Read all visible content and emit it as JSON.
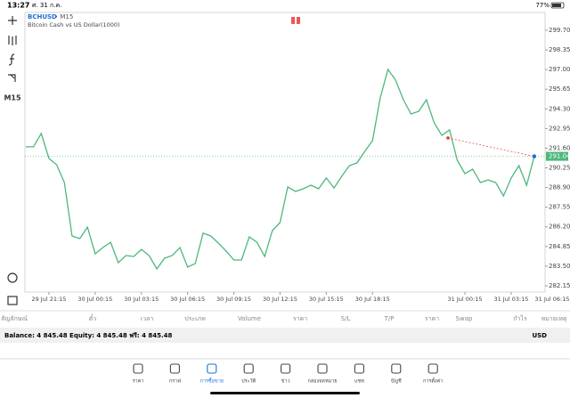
{
  "status_bar": {
    "time": "13:27",
    "date": "ศ. 31 ก.ค.",
    "battery": "77%"
  },
  "chart_header": {
    "symbol": "BCHUSD",
    "timeframe": "• M15",
    "description": "Bitcoin Cash vs US Dollar(1000)"
  },
  "toolbar": {
    "timeframe": "M15"
  },
  "chart_data": {
    "type": "line",
    "color": "#4cb87a",
    "categories": [
      null,
      null,
      null,
      "29 Jul 21:15",
      null,
      null,
      null,
      null,
      null,
      "30 Jul 00:15",
      null,
      null,
      null,
      null,
      null,
      "30 Jul 03:15",
      null,
      null,
      null,
      null,
      null,
      "30 Jul 06:15",
      null,
      null,
      null,
      null,
      null,
      "30 Jul 09:15",
      null,
      null,
      null,
      null,
      null,
      "30 Jul 12:15",
      null,
      null,
      null,
      null,
      null,
      "30 Jul 15:15",
      null,
      null,
      null,
      null,
      null,
      "30 Jul 18:15",
      null,
      null,
      null,
      null,
      null,
      null,
      null,
      null,
      null,
      null,
      null,
      "31 Jul 00:15",
      null,
      null,
      null,
      null,
      null,
      "31 Jul 03:15",
      null,
      null,
      null,
      null,
      null,
      "31 Jul 06:15"
    ],
    "values": [
      291.69,
      291.69,
      292.61,
      290.89,
      290.46,
      289.24,
      285.57,
      285.39,
      286.18,
      284.35,
      284.78,
      285.14,
      283.74,
      284.23,
      284.16,
      284.65,
      284.23,
      283.31,
      284.04,
      284.23,
      284.78,
      283.43,
      283.68,
      285.76,
      285.57,
      285.08,
      284.53,
      283.92,
      283.92,
      285.51,
      285.14,
      284.16,
      285.94,
      286.49,
      288.94,
      288.63,
      288.81,
      289.06,
      288.81,
      289.55,
      288.87,
      289.67,
      290.4,
      290.59,
      291.38,
      292.12,
      295.05,
      297.01,
      296.27,
      294.93,
      293.95,
      294.13,
      294.93,
      293.34,
      292.48,
      292.85,
      290.77,
      289.85,
      290.16,
      289.24,
      289.42,
      289.24,
      288.32,
      289.55,
      290.4,
      289.06,
      291.04,
      null,
      null,
      null
    ],
    "ylim": [
      281.72,
      300.92
    ],
    "yticks": [
      {
        "value": 299.7,
        "label": "299.70"
      },
      298.35,
      {
        "value": 297,
        "label": "297.00"
      },
      295.65,
      {
        "value": 294.3,
        "label": "294.30"
      },
      292.95,
      {
        "value": 291.6,
        "label": "291.60"
      },
      290.25,
      {
        "value": 288.9,
        "label": "288.90"
      },
      287.55,
      {
        "value": 286.2,
        "label": "286.20"
      },
      284.85,
      {
        "value": 283.5,
        "label": "283.50"
      },
      282.15
    ],
    "current_price": 291.04,
    "order_price": 292.3,
    "order_color": "#e53935"
  },
  "table_header": {
    "columns": [
      "สัญลักษณ์",
      "ตั๋ว",
      "เวลา",
      "ประเภท",
      "Volume",
      "ราคา",
      "S/L",
      "T/P",
      "ราคา",
      "Swap",
      "กำไร",
      "หมายเหตุ"
    ]
  },
  "balance": {
    "text": "Balance: 4 845.48 Equity: 4 845.48 ฟรี: 4 845.48",
    "currency": "USD"
  },
  "tabs": {
    "items": [
      "ราคา",
      "กราฟ",
      "การซื้อขาย",
      "ประวัติ",
      "ข่าว",
      "กล่องจดหมาย",
      "แชท",
      "บัญชี",
      "การตั้งค่า"
    ],
    "active": 2
  }
}
